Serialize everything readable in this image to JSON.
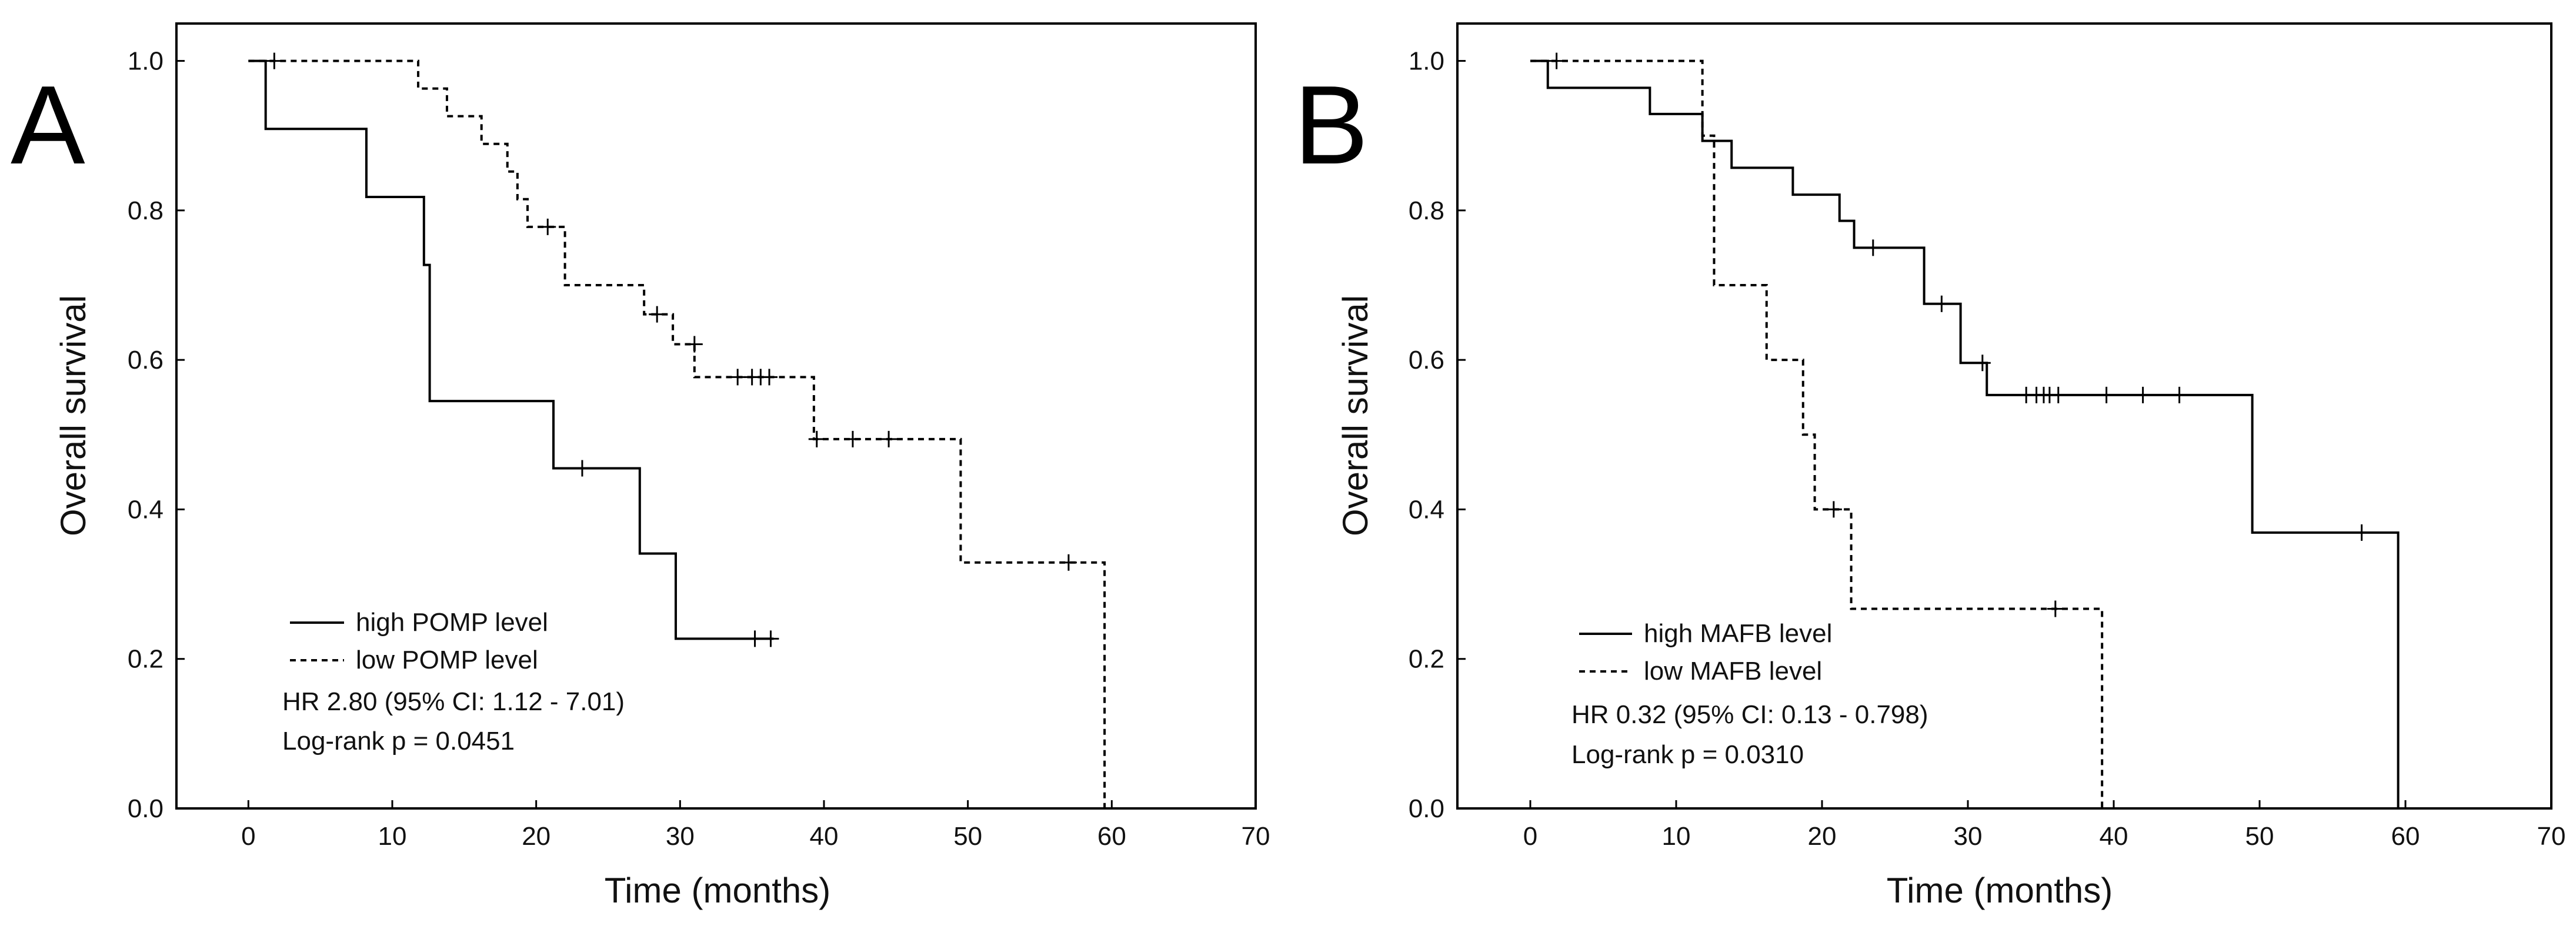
{
  "chart_data": [
    {
      "type": "line",
      "panel": "A",
      "xlabel": "Time (months)",
      "ylabel": "Overall survival",
      "xlim": [
        -5,
        70
      ],
      "ylim": [
        0,
        1.05
      ],
      "xticks": [
        "0",
        "10",
        "20",
        "30",
        "40",
        "50",
        "60",
        "70"
      ],
      "yticks": [
        "0.0",
        "0.2",
        "0.4",
        "0.6",
        "0.8",
        "1.0"
      ],
      "series": [
        {
          "name": "high POMP level",
          "style": "solid",
          "steps": [
            [
              0,
              1.0
            ],
            [
              1.2,
              0.909
            ],
            [
              8.2,
              0.818
            ],
            [
              12.2,
              0.727
            ],
            [
              12.6,
              0.545
            ],
            [
              21.2,
              0.455
            ],
            [
              27.2,
              0.341
            ],
            [
              29.7,
              0.227
            ],
            [
              36.5,
              0.227
            ]
          ],
          "censored": [
            [
              23.2,
              0.455
            ],
            [
              35.2,
              0.227
            ],
            [
              36.3,
              0.227
            ]
          ]
        },
        {
          "name": "low POMP level",
          "style": "dashed",
          "steps": [
            [
              0,
              1.0
            ],
            [
              11.8,
              0.963
            ],
            [
              13.8,
              0.926
            ],
            [
              16.2,
              0.889
            ],
            [
              18.0,
              0.852
            ],
            [
              18.7,
              0.815
            ],
            [
              19.4,
              0.778
            ],
            [
              22.0,
              0.7
            ],
            [
              27.5,
              0.661
            ],
            [
              29.5,
              0.621
            ],
            [
              31.0,
              0.577
            ],
            [
              39.3,
              0.494
            ],
            [
              49.5,
              0.329
            ],
            [
              59.5,
              0.0
            ]
          ],
          "censored": [
            [
              1.8,
              1.0
            ],
            [
              20.8,
              0.778
            ],
            [
              28.4,
              0.661
            ],
            [
              31.0,
              0.621
            ],
            [
              34.0,
              0.577
            ],
            [
              35.0,
              0.577
            ],
            [
              35.6,
              0.577
            ],
            [
              36.2,
              0.577
            ],
            [
              39.5,
              0.494
            ],
            [
              42.0,
              0.494
            ],
            [
              44.5,
              0.494
            ],
            [
              57.0,
              0.329
            ]
          ]
        }
      ],
      "annotations": [
        "HR 2.80 (95% CI: 1.12 - 7.01)",
        "Log-rank p = 0.0451"
      ]
    },
    {
      "type": "line",
      "panel": "B",
      "xlabel": "Time (months)",
      "ylabel": "Overall survival",
      "xlim": [
        -5,
        70
      ],
      "ylim": [
        0,
        1.05
      ],
      "xticks": [
        "0",
        "10",
        "20",
        "30",
        "40",
        "50",
        "60",
        "70"
      ],
      "yticks": [
        "0.0",
        "0.2",
        "0.4",
        "0.6",
        "0.8",
        "1.0"
      ],
      "series": [
        {
          "name": "high MAFB level",
          "style": "solid",
          "steps": [
            [
              0,
              1.0
            ],
            [
              1.2,
              0.964
            ],
            [
              8.2,
              0.929
            ],
            [
              11.8,
              0.893
            ],
            [
              13.8,
              0.857
            ],
            [
              18.0,
              0.821
            ],
            [
              21.2,
              0.786
            ],
            [
              22.2,
              0.75
            ],
            [
              27.0,
              0.675
            ],
            [
              29.5,
              0.596
            ],
            [
              31.3,
              0.553
            ],
            [
              49.5,
              0.369
            ],
            [
              59.5,
              0.0
            ]
          ],
          "censored": [
            [
              1.8,
              1.0
            ],
            [
              23.5,
              0.75
            ],
            [
              28.2,
              0.675
            ],
            [
              31.0,
              0.596
            ],
            [
              34.0,
              0.553
            ],
            [
              34.7,
              0.553
            ],
            [
              35.2,
              0.553
            ],
            [
              35.6,
              0.553
            ],
            [
              36.2,
              0.553
            ],
            [
              39.5,
              0.553
            ],
            [
              42.0,
              0.553
            ],
            [
              44.5,
              0.553
            ],
            [
              57.0,
              0.369
            ]
          ]
        },
        {
          "name": "low MAFB level",
          "style": "dashed",
          "steps": [
            [
              0,
              1.0
            ],
            [
              11.8,
              0.9
            ],
            [
              12.6,
              0.7
            ],
            [
              16.2,
              0.6
            ],
            [
              18.7,
              0.5
            ],
            [
              19.5,
              0.4
            ],
            [
              22.0,
              0.267
            ],
            [
              39.2,
              0.0
            ]
          ],
          "censored": [
            [
              20.8,
              0.4
            ],
            [
              36.0,
              0.267
            ]
          ]
        }
      ],
      "annotations": [
        "HR 0.32 (95% CI: 0.13 - 0.798)",
        "Log-rank p = 0.0310"
      ]
    }
  ]
}
